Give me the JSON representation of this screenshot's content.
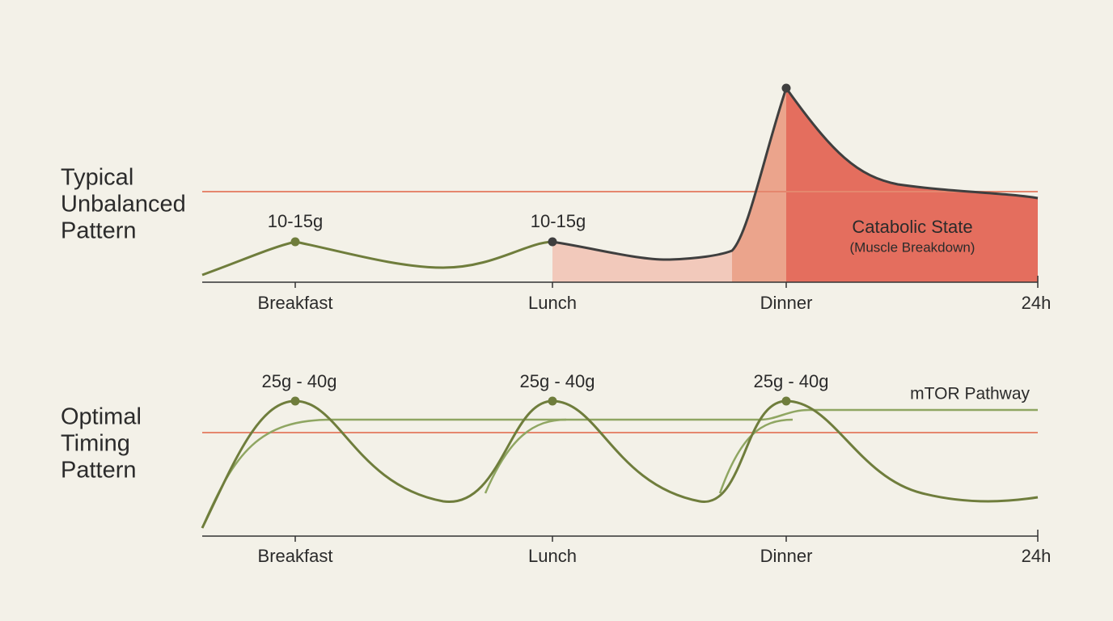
{
  "panels": [
    {
      "label": [
        "Typical",
        "Unbalanced",
        "Pattern"
      ],
      "peak_labels": [
        "10-15g",
        "10-15g"
      ],
      "axis_labels": [
        "Breakfast",
        "Lunch",
        "Dinner",
        "24h"
      ],
      "zone_title": "Catabolic State",
      "zone_subtitle": "(Muscle Breakdown)"
    },
    {
      "label": [
        "Optimal",
        "Timing",
        "Pattern"
      ],
      "peak_labels": [
        "25g - 40g",
        "25g - 40g",
        "25g - 40g"
      ],
      "axis_labels": [
        "Breakfast",
        "Lunch",
        "Dinner",
        "24h"
      ],
      "line_label": "mTOR Pathway"
    }
  ]
}
